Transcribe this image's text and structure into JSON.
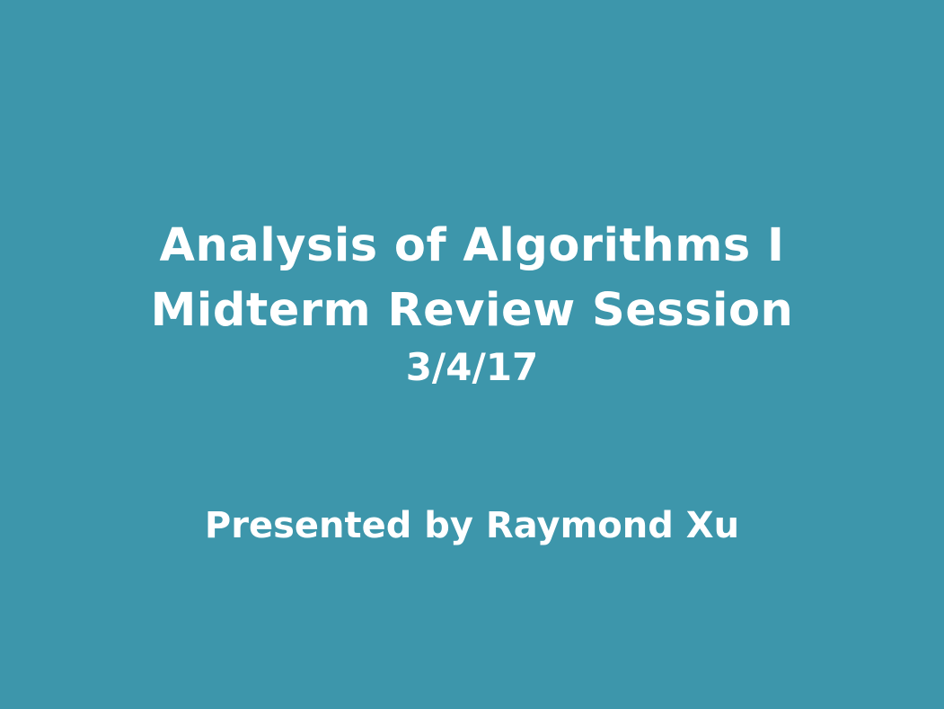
{
  "slide": {
    "background_color": "#3d96ab",
    "text_color": "#ffffff",
    "title_lines": [
      "Analysis of Algorithms I",
      "Midterm Review Session"
    ],
    "date": "3/4/17",
    "presenter": "Presented by Raymond Xu"
  }
}
